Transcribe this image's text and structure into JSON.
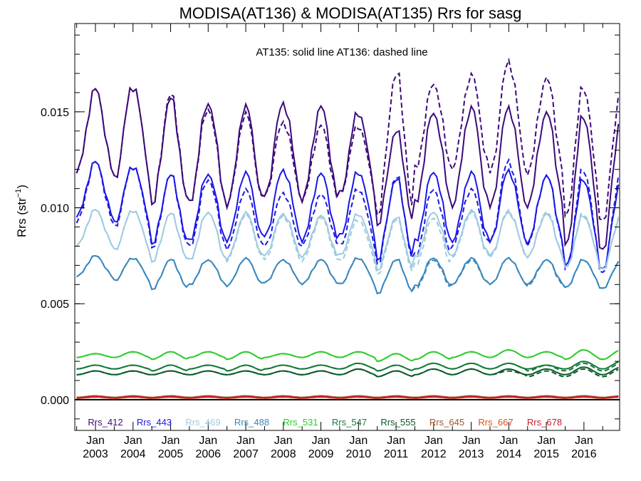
{
  "chart_data": {
    "type": "line",
    "title": "MODISA(AT136) & MODISA(AT135)  Rrs for sasg",
    "ylabel": "Rrs (str",
    "ylabel_exp": "−1",
    "ylabel_close": ")",
    "annotation": "AT135: solid line   AT136: dashed line",
    "ylim": [
      -0.0016,
      0.0196
    ],
    "xlim": [
      2002.45,
      2016.95
    ],
    "yticks": [
      0.0,
      0.005,
      0.01,
      0.015
    ],
    "ytick_labels": [
      "0.000",
      "0.005",
      "0.010",
      "0.015"
    ],
    "xticks": [
      2003,
      2004,
      2005,
      2006,
      2007,
      2008,
      2009,
      2010,
      2011,
      2012,
      2013,
      2014,
      2015,
      2016
    ],
    "xtick_month": "Jan",
    "xtick_years": [
      "2003",
      "2004",
      "2005",
      "2006",
      "2007",
      "2008",
      "2009",
      "2010",
      "2011",
      "2012",
      "2013",
      "2014",
      "2015",
      "2016"
    ],
    "zero_line": true,
    "grid": false,
    "legend_position": "bottom-inside",
    "series": [
      {
        "name": "Rrs_412",
        "color": "#3b0a7a",
        "solid_max": [
          0.0162,
          0.0164,
          0.0157,
          0.0155,
          0.0154,
          0.0155,
          0.0153,
          0.015,
          0.014,
          0.015,
          0.0153,
          0.0153,
          0.015,
          0.0148
        ],
        "solid_min": [
          0.0118,
          0.0115,
          0.01,
          0.0103,
          0.01,
          0.0106,
          0.0103,
          0.0107,
          0.009,
          0.0102,
          0.01,
          0.01,
          0.01,
          0.0078
        ],
        "dashed_max": [
          0.0162,
          0.0164,
          0.0159,
          0.0152,
          0.015,
          0.0145,
          0.0143,
          0.0143,
          0.017,
          0.0165,
          0.017,
          0.0177,
          0.0168,
          0.0163
        ],
        "dashed_min": [
          0.0118,
          0.0115,
          0.01,
          0.0103,
          0.01,
          0.0106,
          0.0103,
          0.0107,
          0.0095,
          0.012,
          0.012,
          0.0118,
          0.0117,
          0.0093
        ]
      },
      {
        "name": "Rrs_443",
        "color": "#1a17e6",
        "solid_max": [
          0.0124,
          0.0122,
          0.0117,
          0.0118,
          0.0119,
          0.012,
          0.0118,
          0.0119,
          0.0115,
          0.0119,
          0.0119,
          0.012,
          0.0117,
          0.0115
        ],
        "solid_min": [
          0.0095,
          0.0092,
          0.008,
          0.0083,
          0.0082,
          0.0085,
          0.0082,
          0.0085,
          0.0072,
          0.0082,
          0.0082,
          0.0082,
          0.0081,
          0.0068
        ],
        "dashed_max": [
          0.0124,
          0.0122,
          0.0117,
          0.0115,
          0.011,
          0.0108,
          0.0107,
          0.011,
          0.0116,
          0.011,
          0.011,
          0.0125,
          0.0117,
          0.012
        ],
        "dashed_min": [
          0.0092,
          0.009,
          0.0078,
          0.008,
          0.0078,
          0.008,
          0.008,
          0.008,
          0.007,
          0.0075,
          0.008,
          0.0082,
          0.008,
          0.0066
        ]
      },
      {
        "name": "Rrs_469",
        "color": "#9ecae1",
        "solid_max": [
          0.0099,
          0.0099,
          0.0097,
          0.0098,
          0.0098,
          0.0097,
          0.0096,
          0.0097,
          0.0095,
          0.0098,
          0.0099,
          0.0098,
          0.0097,
          0.0096
        ],
        "solid_min": [
          0.008,
          0.0078,
          0.0071,
          0.0073,
          0.0073,
          0.0075,
          0.0074,
          0.0075,
          0.0067,
          0.0074,
          0.0075,
          0.0075,
          0.0074,
          0.0068
        ],
        "dashed_max": [
          0.0099,
          0.0099,
          0.0097,
          0.0098,
          0.0097,
          0.0096,
          0.0095,
          0.0094,
          0.0094,
          0.0095,
          0.0098,
          0.0099,
          0.0098,
          0.0097
        ],
        "dashed_min": [
          0.008,
          0.0078,
          0.0071,
          0.0073,
          0.0072,
          0.0073,
          0.0072,
          0.0072,
          0.0065,
          0.007,
          0.0074,
          0.0074,
          0.0074,
          0.0068
        ]
      },
      {
        "name": "Rrs_488",
        "color": "#3a87bd",
        "solid_max": [
          0.0075,
          0.0074,
          0.0073,
          0.0073,
          0.0074,
          0.0073,
          0.0073,
          0.0074,
          0.0073,
          0.0074,
          0.0074,
          0.0074,
          0.0073,
          0.0073
        ],
        "solid_min": [
          0.0064,
          0.0062,
          0.0057,
          0.006,
          0.0059,
          0.0061,
          0.006,
          0.006,
          0.0055,
          0.0059,
          0.006,
          0.006,
          0.006,
          0.0058
        ],
        "dashed_max": [
          0.0075,
          0.0074,
          0.0073,
          0.0073,
          0.0074,
          0.0073,
          0.0073,
          0.0074,
          0.0073,
          0.0073,
          0.0073,
          0.0074,
          0.0073,
          0.0073
        ],
        "dashed_min": [
          0.0064,
          0.0062,
          0.0057,
          0.006,
          0.0059,
          0.0061,
          0.006,
          0.006,
          0.0055,
          0.0058,
          0.006,
          0.006,
          0.0059,
          0.0058
        ]
      },
      {
        "name": "Rrs_531",
        "color": "#2ecc2e",
        "solid_max": [
          0.0024,
          0.0025,
          0.0025,
          0.0025,
          0.0025,
          0.0024,
          0.0025,
          0.0025,
          0.0024,
          0.0025,
          0.0025,
          0.0026,
          0.0025,
          0.0026
        ],
        "solid_min": [
          0.0022,
          0.0022,
          0.0021,
          0.0022,
          0.0021,
          0.0022,
          0.0022,
          0.0022,
          0.002,
          0.0021,
          0.0022,
          0.0022,
          0.0022,
          0.0021
        ],
        "dashed_max": [
          0.0024,
          0.0025,
          0.0025,
          0.0025,
          0.0025,
          0.0024,
          0.0025,
          0.0025,
          0.0024,
          0.0025,
          0.0025,
          0.0026,
          0.0025,
          0.0026
        ],
        "dashed_min": [
          0.0022,
          0.0022,
          0.0021,
          0.0022,
          0.0021,
          0.0022,
          0.0022,
          0.0022,
          0.002,
          0.0021,
          0.0022,
          0.0022,
          0.0022,
          0.0021
        ]
      },
      {
        "name": "Rrs_547",
        "color": "#127a3a",
        "solid_max": [
          0.0018,
          0.0018,
          0.0018,
          0.0018,
          0.0018,
          0.0018,
          0.0018,
          0.0019,
          0.0018,
          0.0019,
          0.0019,
          0.0019,
          0.0018,
          0.002
        ],
        "solid_min": [
          0.0016,
          0.0016,
          0.0015,
          0.0016,
          0.0015,
          0.0016,
          0.0016,
          0.0016,
          0.0015,
          0.0016,
          0.0016,
          0.0016,
          0.0016,
          0.0016
        ],
        "dashed_max": [
          0.0018,
          0.0018,
          0.0018,
          0.0018,
          0.0018,
          0.0018,
          0.0018,
          0.0019,
          0.0018,
          0.0019,
          0.0019,
          0.0019,
          0.0018,
          0.0019
        ],
        "dashed_min": [
          0.0016,
          0.0016,
          0.0015,
          0.0016,
          0.0015,
          0.0016,
          0.0016,
          0.0016,
          0.0015,
          0.0016,
          0.0016,
          0.0016,
          0.0015,
          0.0015
        ]
      },
      {
        "name": "Rrs_555",
        "color": "#0b5a2a",
        "solid_max": [
          0.0015,
          0.0015,
          0.0015,
          0.0015,
          0.0015,
          0.0015,
          0.0015,
          0.0016,
          0.0015,
          0.0016,
          0.0016,
          0.0016,
          0.0016,
          0.0017
        ],
        "solid_min": [
          0.0013,
          0.0013,
          0.0013,
          0.0013,
          0.0013,
          0.0013,
          0.0013,
          0.0013,
          0.0012,
          0.0013,
          0.0013,
          0.0013,
          0.0013,
          0.0013
        ],
        "dashed_max": [
          0.0015,
          0.0015,
          0.0015,
          0.0015,
          0.0015,
          0.0015,
          0.0015,
          0.0016,
          0.0015,
          0.0016,
          0.0016,
          0.0015,
          0.0015,
          0.0016
        ],
        "dashed_min": [
          0.0013,
          0.0013,
          0.0013,
          0.0013,
          0.0013,
          0.0013,
          0.0013,
          0.0013,
          0.0012,
          0.0013,
          0.0013,
          0.0013,
          0.0012,
          0.0012
        ]
      },
      {
        "name": "Rrs_645",
        "color": "#a0522d",
        "solid_max": [
          0.0002,
          0.0002,
          0.0002,
          0.0002,
          0.0002,
          0.0002,
          0.0002,
          0.0002,
          0.0002,
          0.0002,
          0.0002,
          0.0002,
          0.0002,
          0.0002
        ],
        "solid_min": [
          0.00012,
          0.00012,
          0.00012,
          0.00012,
          0.00012,
          0.00012,
          0.00012,
          0.00012,
          0.00012,
          0.00012,
          0.00012,
          0.00012,
          0.00012,
          0.00012
        ],
        "dashed_max": [
          0.0002,
          0.0002,
          0.0002,
          0.0002,
          0.0002,
          0.0002,
          0.0002,
          0.0002,
          0.0002,
          0.0002,
          0.0002,
          0.0002,
          0.0002,
          0.0002
        ],
        "dashed_min": [
          0.00012,
          0.00012,
          0.00012,
          0.00012,
          0.00012,
          0.00012,
          0.00012,
          0.00012,
          0.00012,
          0.00012,
          0.00012,
          0.00012,
          0.00012,
          0.00012
        ]
      },
      {
        "name": "Rrs_667",
        "color": "#e0501a",
        "solid_max": [
          0.00014,
          0.00014,
          0.00014,
          0.00014,
          0.00014,
          0.00014,
          0.00014,
          0.00014,
          0.00014,
          0.00014,
          0.00014,
          0.00014,
          0.00014,
          0.00014
        ],
        "solid_min": [
          8e-05,
          8e-05,
          8e-05,
          8e-05,
          8e-05,
          8e-05,
          8e-05,
          8e-05,
          8e-05,
          8e-05,
          8e-05,
          8e-05,
          8e-05,
          8e-05
        ],
        "dashed_max": [
          0.00014,
          0.00014,
          0.00014,
          0.00014,
          0.00014,
          0.00014,
          0.00014,
          0.00014,
          0.00014,
          0.00014,
          0.00014,
          0.00014,
          0.00014,
          0.00014
        ],
        "dashed_min": [
          8e-05,
          8e-05,
          8e-05,
          8e-05,
          8e-05,
          8e-05,
          8e-05,
          8e-05,
          8e-05,
          8e-05,
          8e-05,
          8e-05,
          8e-05,
          8e-05
        ]
      },
      {
        "name": "Rrs_678",
        "color": "#c81e28",
        "solid_max": [
          0.00016,
          0.00016,
          0.00016,
          0.00016,
          0.00016,
          0.00016,
          0.00016,
          0.00016,
          0.00016,
          0.00016,
          0.00016,
          0.00016,
          0.00016,
          0.00016
        ],
        "solid_min": [
          0.0001,
          0.0001,
          0.0001,
          0.0001,
          0.0001,
          0.0001,
          0.0001,
          0.0001,
          0.0001,
          0.0001,
          0.0001,
          0.0001,
          0.0001,
          0.0001
        ],
        "dashed_max": [
          0.00016,
          0.00016,
          0.00016,
          0.00016,
          0.00016,
          0.00016,
          0.00016,
          0.00016,
          0.00016,
          0.00016,
          0.00016,
          0.00016,
          0.00016,
          0.00016
        ],
        "dashed_min": [
          0.0001,
          0.0001,
          0.0001,
          0.0001,
          0.0001,
          0.0001,
          0.0001,
          0.0001,
          0.0001,
          0.0001,
          0.0001,
          0.0001,
          0.0001,
          0.0001
        ]
      }
    ]
  }
}
